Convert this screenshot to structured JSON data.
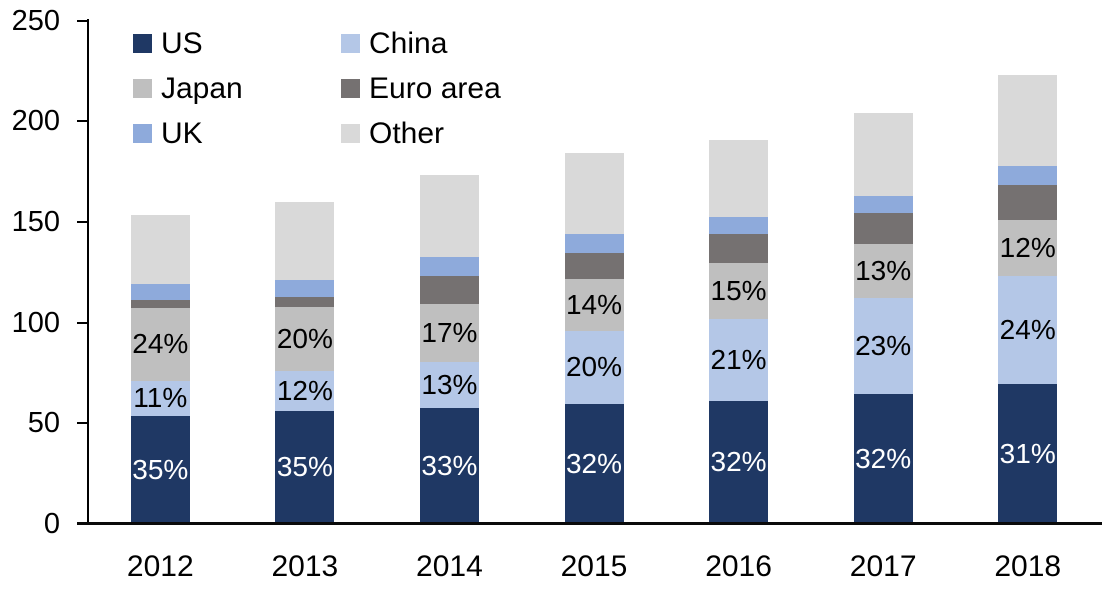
{
  "chart_data": {
    "type": "bar",
    "stacked": true,
    "categories": [
      "2012",
      "2013",
      "2014",
      "2015",
      "2016",
      "2017",
      "2018"
    ],
    "series": [
      {
        "name": "US",
        "color": "#1F3864",
        "values": [
          53.7,
          56.2,
          57.8,
          59.5,
          61.1,
          64.5,
          69.4
        ],
        "labels": [
          "35%",
          "35%",
          "33%",
          "32%",
          "32%",
          "32%",
          "31%"
        ],
        "label_color": "#FFFFFF"
      },
      {
        "name": "China",
        "color": "#B4C7E7",
        "values": [
          17.4,
          19.8,
          22.4,
          36.4,
          40.6,
          47.5,
          53.9
        ],
        "labels": [
          "11%",
          "12%",
          "13%",
          "20%",
          "21%",
          "23%",
          "24%"
        ],
        "label_color": "#000000"
      },
      {
        "name": "Japan",
        "color": "#BFBFBF",
        "values": [
          36.3,
          31.5,
          29.0,
          25.7,
          28.1,
          27.0,
          27.6
        ],
        "labels": [
          "24%",
          "20%",
          "17%",
          "14%",
          "15%",
          "13%",
          "12%"
        ],
        "label_color": "#000000"
      },
      {
        "name": "Euro area",
        "color": "#757171",
        "values": [
          3.9,
          5.0,
          14.1,
          12.9,
          14.1,
          15.4,
          17.6
        ],
        "labels": null,
        "label_color": null
      },
      {
        "name": "UK",
        "color": "#8EAADB",
        "values": [
          8.0,
          8.8,
          9.1,
          9.5,
          8.6,
          8.6,
          9.5
        ],
        "labels": null,
        "label_color": null
      },
      {
        "name": "Other",
        "color": "#D9D9D9",
        "values": [
          34.2,
          38.7,
          41.1,
          40.0,
          38.0,
          41.0,
          45.0
        ],
        "labels": null,
        "label_color": null
      }
    ],
    "totals": [
      153.5,
      160.0,
      173.5,
      184.0,
      190.5,
      204.0,
      223.0
    ],
    "y_axis": {
      "min": 0,
      "max": 250,
      "step": 50,
      "tick_labels": [
        "0",
        "50",
        "100",
        "150",
        "200",
        "250"
      ]
    },
    "xlabel": "",
    "ylabel": "",
    "title": "",
    "grid": false,
    "legend_position": "top-left",
    "legend_columns": 2
  },
  "colors": {
    "background": "#FFFFFF",
    "axis": "#000000",
    "text": "#000000"
  }
}
